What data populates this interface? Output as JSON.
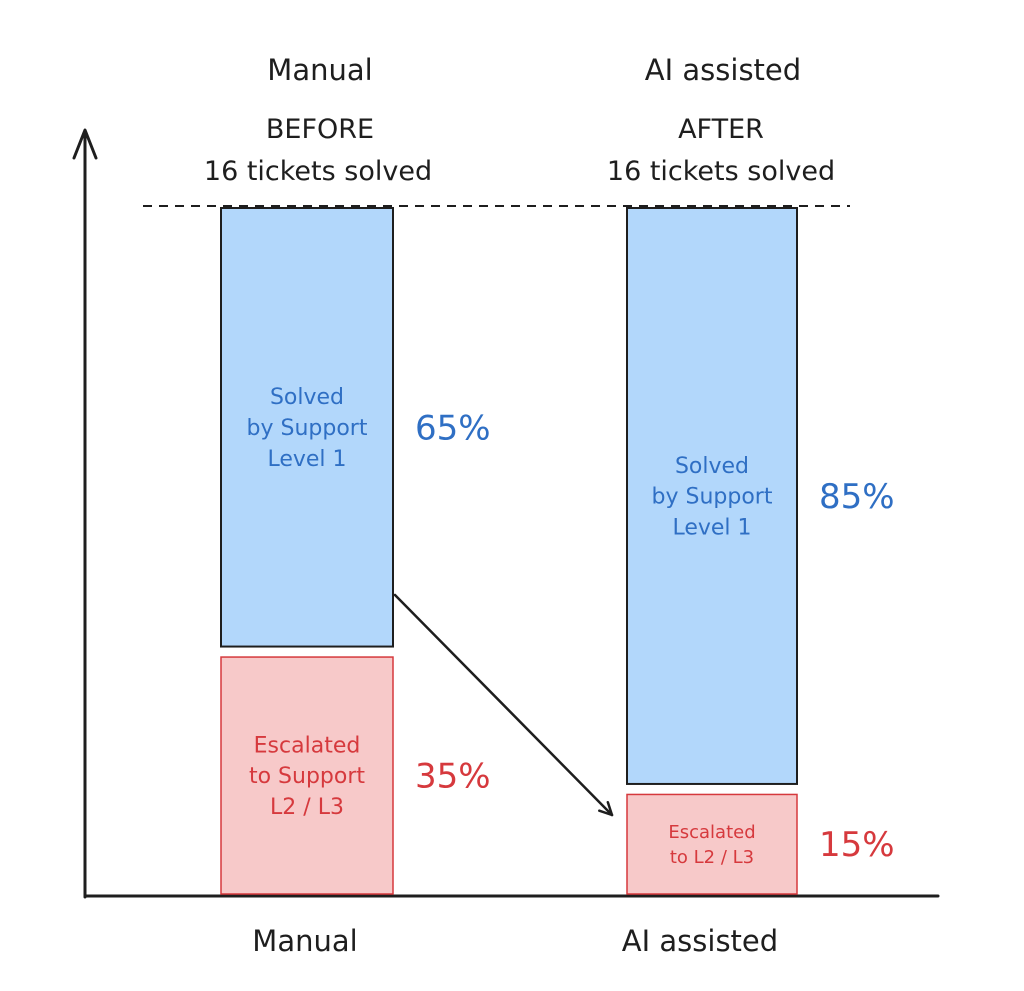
{
  "chart_data": {
    "type": "bar",
    "stacked": true,
    "categories": [
      "Manual",
      "AI assisted"
    ],
    "headers": [
      {
        "title": "Manual",
        "stage": "BEFORE",
        "total": "16 tickets solved"
      },
      {
        "title": "AI assisted",
        "stage": "AFTER",
        "total": "16 tickets solved"
      }
    ],
    "series": [
      {
        "values": [
          65,
          85
        ],
        "value_labels": [
          "65%",
          "85%"
        ],
        "segment_labels": [
          [
            "Solved",
            "by Support",
            "Level 1"
          ],
          [
            "Solved",
            "by Support",
            "Level 1"
          ]
        ],
        "fill": "#b2d7fb",
        "text_color": "#2f6fc4"
      },
      {
        "values": [
          35,
          15
        ],
        "value_labels": [
          "35%",
          "15%"
        ],
        "segment_labels": [
          [
            "Escalated",
            "to Support",
            "L2 / L3"
          ],
          [
            "Escalated",
            "to L2 / L3"
          ]
        ],
        "fill": "#f7c9c9",
        "text_color": "#d6393d"
      }
    ],
    "ylim": [
      0,
      100
    ],
    "reference_line": "dashed line at 100% (16 tickets)",
    "annotation": "arrow from Manual escalated segment to AI assisted escalated segment",
    "grid": false,
    "legend": "none"
  }
}
